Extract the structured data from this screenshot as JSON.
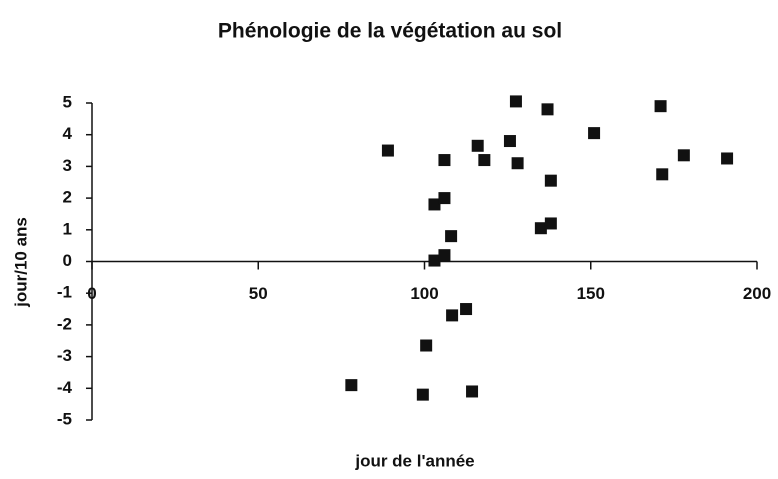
{
  "chart_data": {
    "type": "scatter",
    "title": "Phénologie de la végétation au sol",
    "xlabel": "jour de l'année",
    "ylabel": "jour/10 ans",
    "x": [
      78,
      89,
      99.5,
      100.5,
      103,
      103,
      106,
      106,
      106,
      108,
      108.3,
      112.5,
      114.3,
      116,
      118,
      125.7,
      127.5,
      128,
      135,
      137,
      138,
      138,
      151,
      171,
      171.5,
      178,
      191
    ],
    "values": [
      -3.9,
      3.5,
      -4.2,
      -2.65,
      0.03,
      1.8,
      0.2,
      2.0,
      3.2,
      0.8,
      -1.7,
      -1.5,
      -4.1,
      3.65,
      3.2,
      3.8,
      5.05,
      3.1,
      1.05,
      4.8,
      1.2,
      2.55,
      4.05,
      4.9,
      2.75,
      3.35,
      3.25
    ],
    "color": "#111111",
    "xlim": [
      0,
      200
    ],
    "xticks": [
      0,
      50,
      100,
      150,
      200
    ],
    "ylim": [
      -5,
      5
    ],
    "yticks": [
      -5,
      -4,
      -3,
      -2,
      -1,
      0,
      1,
      2,
      3,
      4,
      5
    ]
  }
}
